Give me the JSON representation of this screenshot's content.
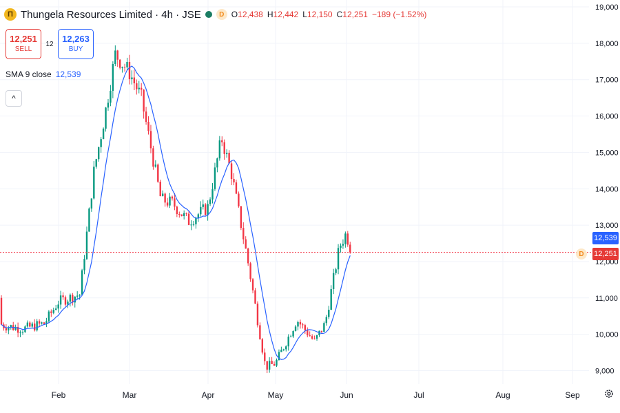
{
  "header": {
    "logo_letter": "Π",
    "symbol": "Thungela Resources Limited · 4h · JSE",
    "d_badge": "D",
    "ohlc": {
      "o_label": "O",
      "o": "12,438",
      "h_label": "H",
      "h": "12,442",
      "l_label": "L",
      "l": "12,150",
      "c_label": "C",
      "c": "12,251",
      "change": "−189 (−1.52%)"
    }
  },
  "trade": {
    "sell_price": "12,251",
    "sell_label": "SELL",
    "spread": "12",
    "buy_price": "12,263",
    "buy_label": "BUY"
  },
  "indicator": {
    "name": "SMA 9 close",
    "value": "12,539"
  },
  "collapse_icon": "^",
  "price_tags": {
    "sma": "12,539",
    "last": "12,251",
    "dividend_marker": "D"
  },
  "settings_icon": "gear-icon",
  "colors": {
    "up": "#089981",
    "down": "#f23645",
    "sma": "#2962ff",
    "grid": "#f0f3fa"
  },
  "chart_data": {
    "type": "candlestick",
    "title": "Thungela Resources Limited · 4h · JSE",
    "y_axis_labels": [
      "19,000",
      "18,000",
      "17,000",
      "16,000",
      "15,000",
      "14,000",
      "13,000",
      "12,000",
      "11,000",
      "10,000",
      "9,000"
    ],
    "x_axis_labels": [
      "Feb",
      "Mar",
      "Apr",
      "May",
      "Jun",
      "Jul",
      "Aug",
      "Sep"
    ],
    "ylim": [
      8800,
      19000
    ],
    "last_price": 12251,
    "sma_value": 12539,
    "anchors": [
      {
        "m": 0.0,
        "p": 11000
      },
      {
        "m": 0.2,
        "p": 10250
      },
      {
        "m": 0.5,
        "p": 10150
      },
      {
        "m": 0.8,
        "p": 10300
      },
      {
        "m": 1.0,
        "p": 10900
      },
      {
        "m": 1.3,
        "p": 11100
      },
      {
        "m": 1.5,
        "p": 14500
      },
      {
        "m": 1.65,
        "p": 16000
      },
      {
        "m": 1.8,
        "p": 17700
      },
      {
        "m": 2.0,
        "p": 17200
      },
      {
        "m": 2.15,
        "p": 16500
      },
      {
        "m": 2.4,
        "p": 13700
      },
      {
        "m": 2.55,
        "p": 13600
      },
      {
        "m": 2.75,
        "p": 13100
      },
      {
        "m": 3.0,
        "p": 13500
      },
      {
        "m": 3.2,
        "p": 15400
      },
      {
        "m": 3.35,
        "p": 14400
      },
      {
        "m": 3.6,
        "p": 11900
      },
      {
        "m": 3.85,
        "p": 9100
      },
      {
        "m": 4.0,
        "p": 9200
      },
      {
        "m": 4.3,
        "p": 10400
      },
      {
        "m": 4.55,
        "p": 9800
      },
      {
        "m": 4.7,
        "p": 10300
      },
      {
        "m": 4.9,
        "p": 12400
      },
      {
        "m": 5.0,
        "p": 12800
      },
      {
        "m": 5.05,
        "p": 12251
      }
    ]
  }
}
